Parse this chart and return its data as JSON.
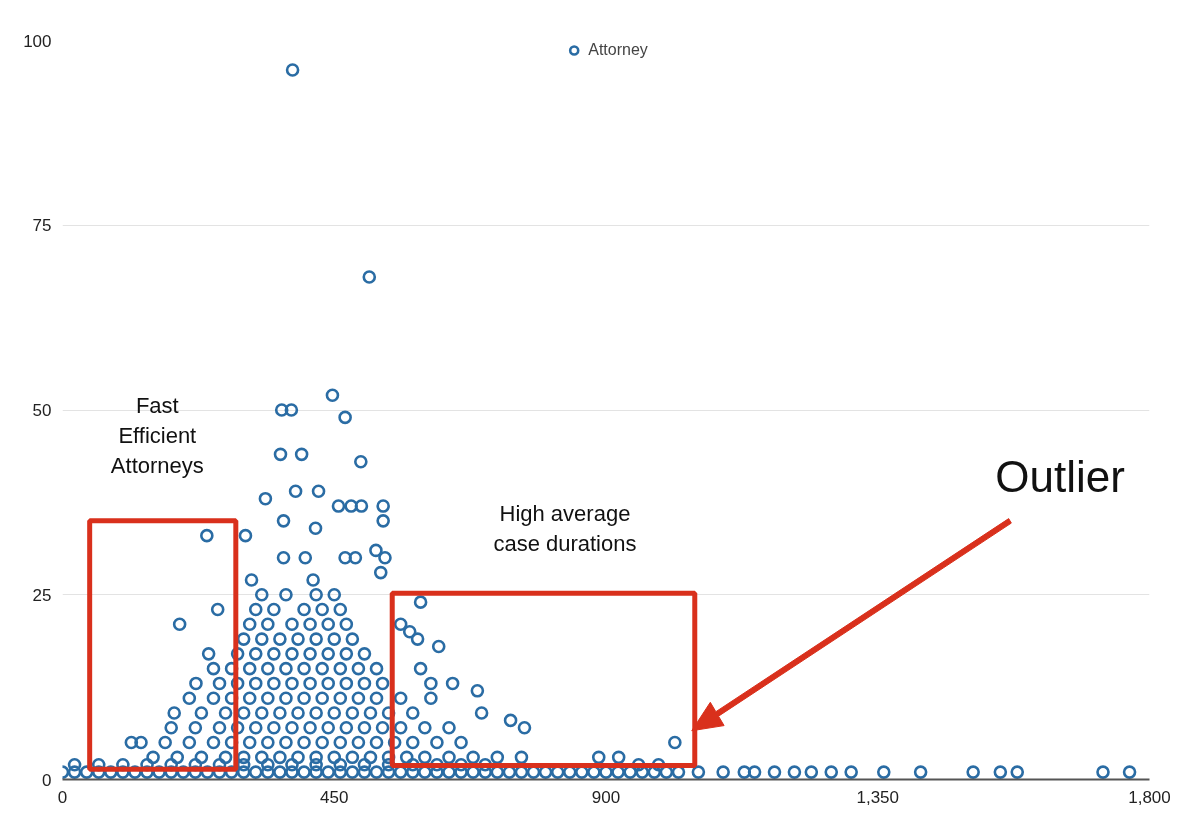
{
  "chart_data": {
    "type": "scatter",
    "x": [
      0,
      20,
      40,
      60,
      80,
      100,
      120,
      140,
      160,
      180,
      200,
      220,
      240,
      260,
      280,
      300,
      320,
      340,
      360,
      380,
      400,
      420,
      440,
      460,
      480,
      500,
      520,
      540,
      560,
      580,
      600,
      620,
      640,
      660,
      680,
      700,
      720,
      740,
      760,
      780,
      800,
      820,
      840,
      860,
      880,
      900,
      920,
      940,
      960,
      980,
      1000,
      1020,
      1053,
      1094,
      1129,
      1146,
      1179,
      1212,
      1240,
      1273,
      1306,
      1360,
      1421,
      1508,
      1553,
      1581,
      1723,
      1767,
      20,
      60,
      100,
      140,
      180,
      220,
      260,
      300,
      340,
      380,
      420,
      460,
      500,
      540,
      580,
      620,
      660,
      700,
      954,
      987,
      150,
      190,
      230,
      270,
      300,
      330,
      360,
      390,
      420,
      450,
      480,
      510,
      540,
      570,
      600,
      640,
      680,
      720,
      760,
      888,
      921,
      114,
      130,
      170,
      210,
      250,
      280,
      310,
      340,
      370,
      400,
      430,
      460,
      490,
      520,
      550,
      580,
      620,
      660,
      1014,
      180,
      220,
      260,
      290,
      320,
      350,
      380,
      410,
      440,
      470,
      500,
      530,
      560,
      600,
      640,
      742,
      765,
      185,
      230,
      270,
      300,
      330,
      360,
      390,
      420,
      450,
      480,
      510,
      540,
      580,
      694,
      210,
      250,
      280,
      310,
      340,
      370,
      400,
      430,
      460,
      490,
      520,
      560,
      610,
      687,
      221,
      260,
      290,
      320,
      350,
      380,
      410,
      440,
      470,
      500,
      530,
      610,
      646,
      250,
      280,
      310,
      340,
      370,
      400,
      430,
      460,
      490,
      520,
      593,
      242,
      290,
      320,
      350,
      380,
      410,
      440,
      470,
      500,
      623,
      588,
      300,
      330,
      360,
      390,
      420,
      450,
      480,
      575,
      194,
      310,
      340,
      380,
      410,
      440,
      470,
      560,
      257,
      320,
      350,
      400,
      430,
      460,
      593,
      330,
      370,
      420,
      450,
      313,
      415,
      381,
      508,
      447,
      468,
      363,
      379,
      361,
      396,
      494,
      336,
      386,
      424,
      457,
      478,
      495,
      531,
      366,
      531,
      419,
      303,
      239,
      366,
      402,
      468,
      485,
      519,
      534,
      527
    ],
    "series": [
      {
        "name": "Attorney",
        "color": "#2a6ca4",
        "values": [
          1,
          1,
          1,
          1,
          1,
          1,
          1,
          1,
          1,
          1,
          1,
          1,
          1,
          1,
          1,
          1,
          1,
          1,
          1,
          1,
          1,
          1,
          1,
          1,
          1,
          1,
          1,
          1,
          1,
          1,
          1,
          1,
          1,
          1,
          1,
          1,
          1,
          1,
          1,
          1,
          1,
          1,
          1,
          1,
          1,
          1,
          1,
          1,
          1,
          1,
          1,
          1,
          1,
          1,
          1,
          1,
          1,
          1,
          1,
          1,
          1,
          1,
          1,
          1,
          1,
          1,
          1,
          1,
          2,
          2,
          2,
          2,
          2,
          2,
          2,
          2,
          2,
          2,
          2,
          2,
          2,
          2,
          2,
          2,
          2,
          2,
          2,
          2,
          3,
          3,
          3,
          3,
          3,
          3,
          3,
          3,
          3,
          3,
          3,
          3,
          3,
          3,
          3,
          3,
          3,
          3,
          3,
          3,
          3,
          5,
          5,
          5,
          5,
          5,
          5,
          5,
          5,
          5,
          5,
          5,
          5,
          5,
          5,
          5,
          5,
          5,
          5,
          5,
          7,
          7,
          7,
          7,
          7,
          7,
          7,
          7,
          7,
          7,
          7,
          7,
          7,
          7,
          7,
          8,
          7,
          9,
          9,
          9,
          9,
          9,
          9,
          9,
          9,
          9,
          9,
          9,
          9,
          9,
          9,
          11,
          11,
          11,
          11,
          11,
          11,
          11,
          11,
          11,
          11,
          11,
          11,
          11,
          12,
          13,
          13,
          13,
          13,
          13,
          13,
          13,
          13,
          13,
          13,
          13,
          13,
          13,
          15,
          15,
          15,
          15,
          15,
          15,
          15,
          15,
          15,
          15,
          15,
          17,
          17,
          17,
          17,
          17,
          17,
          17,
          17,
          17,
          18,
          19,
          19,
          19,
          19,
          19,
          19,
          19,
          19,
          20,
          21,
          21,
          21,
          21,
          21,
          21,
          21,
          21,
          23,
          23,
          23,
          23,
          23,
          23,
          24,
          25,
          25,
          25,
          25,
          27,
          27,
          96,
          68,
          52,
          49,
          50,
          50,
          44,
          44,
          43,
          38,
          39,
          39,
          37,
          37,
          37,
          37,
          35,
          35,
          34,
          33,
          33,
          30,
          30,
          30,
          30,
          31,
          30,
          28
        ]
      }
    ],
    "marker": "circle",
    "legend": "top",
    "grid": "y",
    "xlim": [
      0,
      1800
    ],
    "ylim": [
      0,
      100
    ],
    "xticks": [
      0,
      450,
      900,
      {
        "value": 1350,
        "label": "1,350"
      },
      {
        "value": 1800,
        "label": "1,800"
      }
    ],
    "yticks": [
      0,
      25,
      50,
      75,
      100
    ],
    "annotations": [
      "Fast Efficient Attorneys",
      "High average case durations",
      "Outlier"
    ]
  }
}
